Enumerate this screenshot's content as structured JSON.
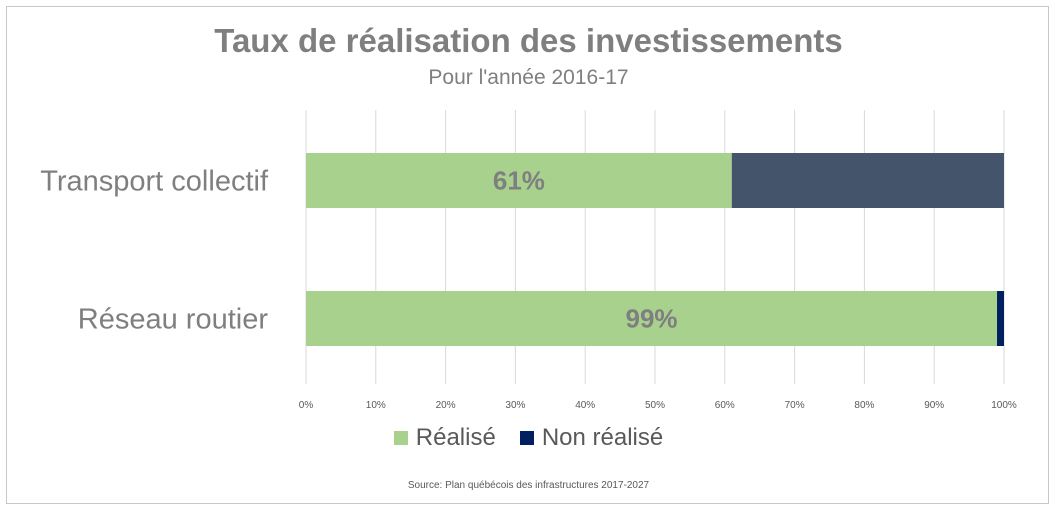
{
  "chart_data": {
    "type": "bar",
    "orientation": "horizontal",
    "stacked": true,
    "title": "Taux de réalisation des investissements",
    "subtitle": "Pour l'année 2016-17",
    "categories": [
      "Transport collectif",
      "Réseau routier"
    ],
    "series": [
      {
        "name": "Réalisé",
        "values": [
          61,
          99
        ],
        "color": "#a9d18e",
        "data_labels": [
          "61%",
          "99%"
        ]
      },
      {
        "name": "Non réalisé",
        "values": [
          39,
          1
        ],
        "color_by_category": [
          "#44546a",
          "#002060"
        ],
        "color": "#002060"
      }
    ],
    "xlim": [
      0,
      100
    ],
    "x_ticks": [
      0,
      10,
      20,
      30,
      40,
      50,
      60,
      70,
      80,
      90,
      100
    ],
    "x_tick_labels": [
      "0%",
      "10%",
      "20%",
      "30%",
      "40%",
      "50%",
      "60%",
      "70%",
      "80%",
      "90%",
      "100%"
    ],
    "grid": true,
    "legend_position": "bottom",
    "source": "Source: Plan québécois des infrastructures 2017-2027"
  }
}
